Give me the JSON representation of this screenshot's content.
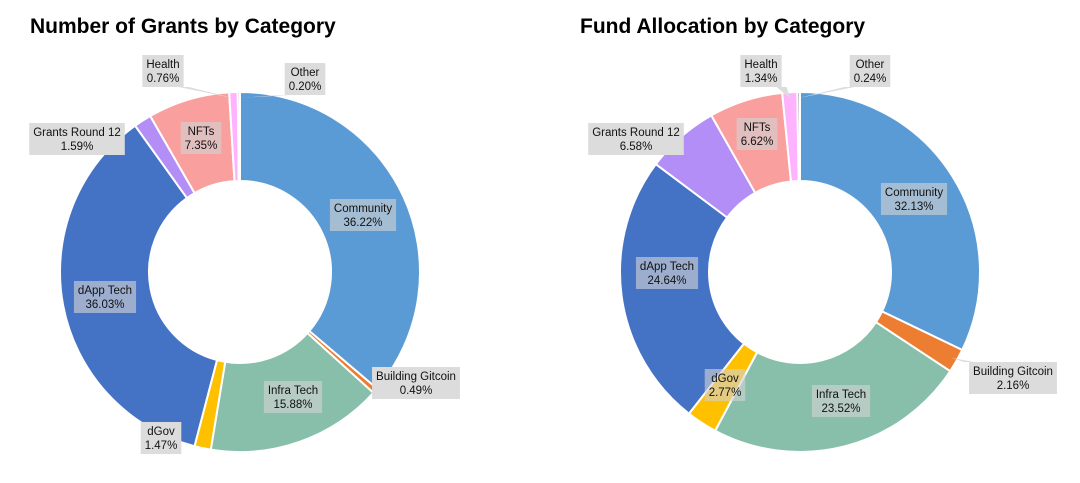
{
  "chart_data": [
    {
      "type": "pie",
      "title": "Number of Grants by Category",
      "slices": [
        {
          "label": "Community",
          "value": 36.22,
          "pct_text": "36.22%",
          "color": "#5B9BD5"
        },
        {
          "label": "Building Gitcoin",
          "value": 0.49,
          "pct_text": "0.49%",
          "color": "#ED7D31"
        },
        {
          "label": "Infra Tech",
          "value": 15.88,
          "pct_text": "15.88%",
          "color": "#88BFAB"
        },
        {
          "label": "dGov",
          "value": 1.47,
          "pct_text": "1.47%",
          "color": "#FFC000"
        },
        {
          "label": "dApp Tech",
          "value": 36.03,
          "pct_text": "36.03%",
          "color": "#4472C4"
        },
        {
          "label": "Grants Round 12",
          "value": 1.59,
          "pct_text": "1.59%",
          "color": "#B48EF7"
        },
        {
          "label": "NFTs",
          "value": 7.35,
          "pct_text": "7.35%",
          "color": "#F9A09E"
        },
        {
          "label": "Health",
          "value": 0.76,
          "pct_text": "0.76%",
          "color": "#FFB3FF"
        },
        {
          "label": "Other",
          "value": 0.2,
          "pct_text": "0.20%",
          "color": "#A5A5A5"
        }
      ]
    },
    {
      "type": "pie",
      "title": "Fund Allocation by Category",
      "slices": [
        {
          "label": "Community",
          "value": 32.13,
          "pct_text": "32.13%",
          "color": "#5B9BD5"
        },
        {
          "label": "Building Gitcoin",
          "value": 2.16,
          "pct_text": "2.16%",
          "color": "#ED7D31"
        },
        {
          "label": "Infra Tech",
          "value": 23.52,
          "pct_text": "23.52%",
          "color": "#88BFAB"
        },
        {
          "label": "dGov",
          "value": 2.77,
          "pct_text": "2.77%",
          "color": "#FFC000"
        },
        {
          "label": "dApp Tech",
          "value": 24.64,
          "pct_text": "24.64%",
          "color": "#4472C4"
        },
        {
          "label": "Grants Round 12",
          "value": 6.58,
          "pct_text": "6.58%",
          "color": "#B48EF7"
        },
        {
          "label": "NFTs",
          "value": 6.62,
          "pct_text": "6.62%",
          "color": "#F9A09E"
        },
        {
          "label": "Health",
          "value": 1.34,
          "pct_text": "1.34%",
          "color": "#FFB3FF"
        },
        {
          "label": "Other",
          "value": 0.24,
          "pct_text": "0.24%",
          "color": "#A5A5A5"
        }
      ]
    }
  ]
}
